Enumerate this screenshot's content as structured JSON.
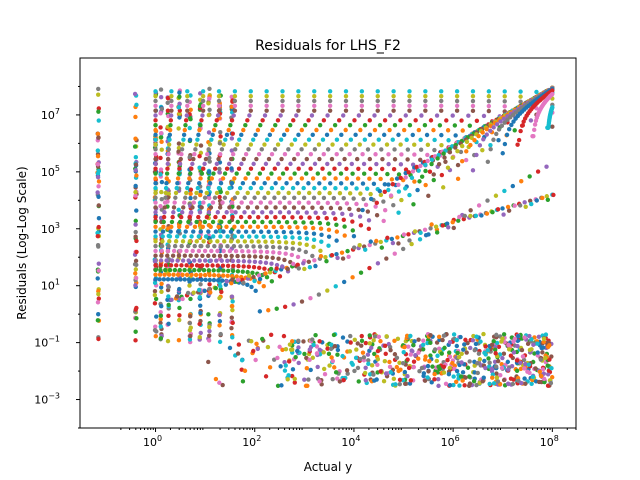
{
  "chart_data": {
    "type": "scatter",
    "title": "Residuals for LHS_F2",
    "xlabel": "Actual y",
    "ylabel": "Residuals (Log-Log Scale)",
    "xscale": "log",
    "yscale": "log",
    "xlim": [
      0.03,
      300000000
    ],
    "ylim": [
      0.0001,
      1000000000
    ],
    "xticks": [
      {
        "value": 1,
        "base": "10",
        "exp": "0"
      },
      {
        "value": 100,
        "base": "10",
        "exp": "2"
      },
      {
        "value": 10000,
        "base": "10",
        "exp": "4"
      },
      {
        "value": 1000000,
        "base": "10",
        "exp": "6"
      },
      {
        "value": 100000000,
        "base": "10",
        "exp": "8"
      }
    ],
    "yticks": [
      {
        "value": 0.001,
        "base": "10",
        "exp": "−3"
      },
      {
        "value": 0.1,
        "base": "10",
        "exp": "−1"
      },
      {
        "value": 10,
        "base": "10",
        "exp": "1"
      },
      {
        "value": 1000,
        "base": "10",
        "exp": "3"
      },
      {
        "value": 100000,
        "base": "10",
        "exp": "5"
      },
      {
        "value": 10000000,
        "base": "10",
        "exp": "7"
      }
    ],
    "grid": false,
    "legend": "none",
    "palette": [
      "#1f77b4",
      "#ff7f0e",
      "#2ca02c",
      "#d62728",
      "#9467bd",
      "#8c564b",
      "#e377c2",
      "#7f7f7f",
      "#bcbd22",
      "#17becf"
    ],
    "columns_x": [
      0.07,
      0.4,
      1,
      1.3,
      1.8,
      3,
      5,
      8,
      12,
      20,
      35
    ],
    "residual_max": 90000000,
    "diagonal_series": [
      {
        "x": [
          2,
          100,
          10000,
          1000000,
          100000000
        ],
        "y": [
          3,
          40,
          300,
          2000,
          10000
        ]
      }
    ],
    "noise_band": {
      "x_range": [
        10,
        100000000
      ],
      "y_range": [
        0.003,
        0.2
      ]
    }
  }
}
